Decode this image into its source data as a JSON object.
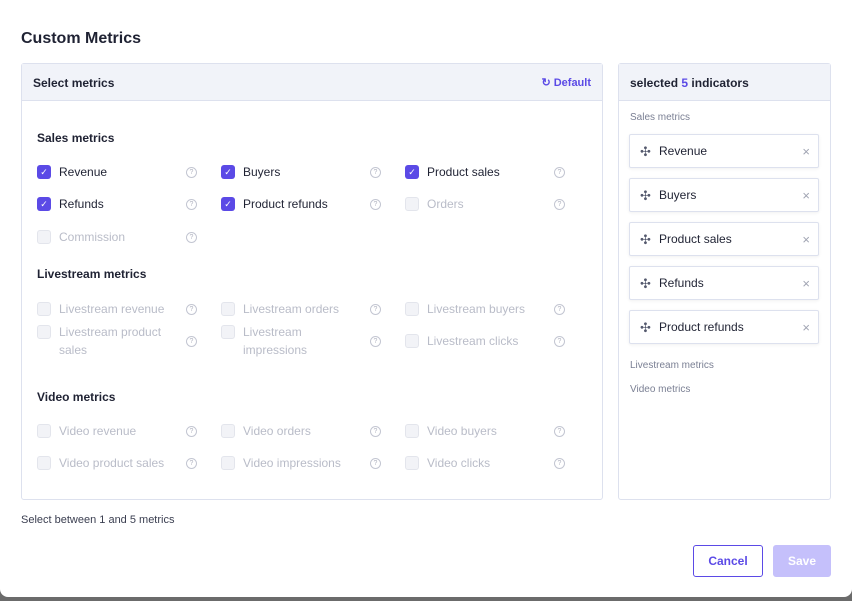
{
  "title": "Custom Metrics",
  "left_panel": {
    "header": "Select metrics",
    "default_label": "Default",
    "default_icon": "refresh-icon",
    "sections": [
      {
        "title": "Sales metrics",
        "items": [
          {
            "label": "Revenue",
            "checked": true,
            "disabled": false
          },
          {
            "label": "Buyers",
            "checked": true,
            "disabled": false
          },
          {
            "label": "Product sales",
            "checked": true,
            "disabled": false
          },
          {
            "label": "Refunds",
            "checked": true,
            "disabled": false
          },
          {
            "label": "Product refunds",
            "checked": true,
            "disabled": false
          },
          {
            "label": "Orders",
            "checked": false,
            "disabled": true
          },
          {
            "label": "Commission",
            "checked": false,
            "disabled": true
          }
        ]
      },
      {
        "title": "Livestream metrics",
        "items": [
          {
            "label": "Livestream revenue",
            "checked": false,
            "disabled": true
          },
          {
            "label": "Livestream orders",
            "checked": false,
            "disabled": true
          },
          {
            "label": "Livestream buyers",
            "checked": false,
            "disabled": true
          },
          {
            "label": "Livestream product sales",
            "checked": false,
            "disabled": true
          },
          {
            "label": "Livestream impressions",
            "checked": false,
            "disabled": true
          },
          {
            "label": "Livestream clicks",
            "checked": false,
            "disabled": true
          }
        ]
      },
      {
        "title": "Video metrics",
        "items": [
          {
            "label": "Video revenue",
            "checked": false,
            "disabled": true
          },
          {
            "label": "Video orders",
            "checked": false,
            "disabled": true
          },
          {
            "label": "Video buyers",
            "checked": false,
            "disabled": true
          },
          {
            "label": "Video product sales",
            "checked": false,
            "disabled": true
          },
          {
            "label": "Video impressions",
            "checked": false,
            "disabled": true
          },
          {
            "label": "Video clicks",
            "checked": false,
            "disabled": true
          }
        ]
      }
    ]
  },
  "right_panel": {
    "header_prefix": "selected",
    "count": "5",
    "header_suffix": "indicators",
    "groups": [
      {
        "title": "Sales metrics",
        "items": [
          "Revenue",
          "Buyers",
          "Product sales",
          "Refunds",
          "Product refunds"
        ]
      },
      {
        "title": "Livestream metrics",
        "items": []
      },
      {
        "title": "Video metrics",
        "items": []
      }
    ]
  },
  "note": "Select between 1 and 5 metrics",
  "buttons": {
    "cancel": "Cancel",
    "save": "Save"
  },
  "colors": {
    "accent": "#5b4ae6",
    "save_disabled": "#c5c0fb"
  }
}
